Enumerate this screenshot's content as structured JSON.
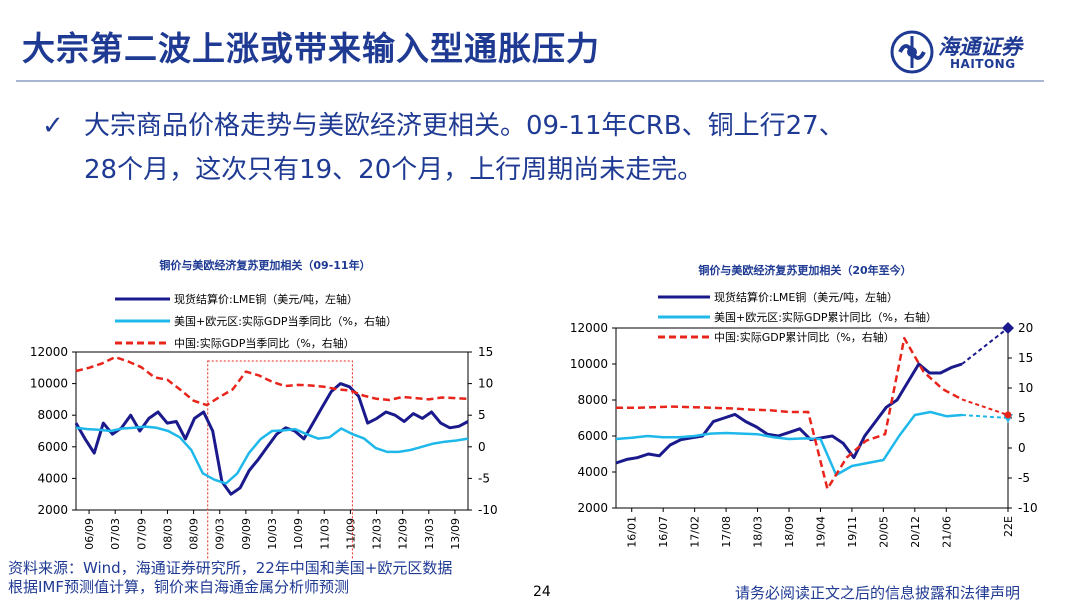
{
  "slide": {
    "title": "大宗第二波上涨或带来输入型通胀压力",
    "bullet_line1": "大宗商品价格走势与美欧经济更相关。09-11年CRB、铜上行27、",
    "bullet_line2": "28个月，这次只有19、20个月，上行周期尚未走完。",
    "page_number": "24",
    "source_line1": "资料来源：Wind，海通证券研究所，22年中国和美国+欧元区数据",
    "source_line2": "根据IMF预测值计算，铜价来自海通金属分析师预测",
    "disclaimer": "请务必阅读正文之后的信息披露和法律声明",
    "title_color": "#1f3a93"
  },
  "logo": {
    "name_cn": "海通证券",
    "name_en": "HAITONG",
    "icon": "haitong-logo-icon"
  },
  "chart_data": [
    {
      "type": "line",
      "title": "铜价与美欧经济复苏更加相关（09-11年）",
      "x_ticks": [
        "06/09",
        "07/03",
        "07/09",
        "08/03",
        "08/09",
        "09/03",
        "09/09",
        "10/03",
        "10/09",
        "11/03",
        "11/09",
        "12/03",
        "12/09",
        "13/03",
        "13/09"
      ],
      "y_left": {
        "range": [
          2000,
          12000
        ],
        "ticks": [
          "2000",
          "4000",
          "6000",
          "8000",
          "10000",
          "12000"
        ]
      },
      "y_right": {
        "range": [
          -10,
          15
        ],
        "ticks": [
          "-10",
          "-5",
          "0",
          "5",
          "10",
          "15"
        ]
      },
      "highlight": {
        "from": "09/03",
        "to": "11/09"
      },
      "series": [
        {
          "name": "现货结算价:LME铜（美元/吨，左轴）",
          "axis": "left",
          "color": "#1a1a8c",
          "style": "solid",
          "values": [
            7500,
            6500,
            5600,
            7500,
            6800,
            7200,
            8000,
            7000,
            7800,
            8200,
            7500,
            7600,
            6500,
            7800,
            8200,
            7000,
            3800,
            3000,
            3400,
            4500,
            5200,
            6000,
            6800,
            7200,
            7000,
            6500,
            7500,
            8500,
            9500,
            10000,
            9800,
            9200,
            7500,
            7800,
            8200,
            8000,
            7600,
            8100,
            7800,
            8200,
            7500,
            7200,
            7300,
            7600
          ]
        },
        {
          "name": "美国+欧元区:实际GDP当季同比（%，右轴）",
          "axis": "right",
          "color": "#1fb8ea",
          "style": "solid",
          "values": [
            3.0,
            2.8,
            2.7,
            2.5,
            2.9,
            3.0,
            3.2,
            3.0,
            2.5,
            1.5,
            -0.5,
            -4.2,
            -5.2,
            -5.8,
            -4.2,
            -1.0,
            1.2,
            2.5,
            2.6,
            2.8,
            2.0,
            1.3,
            1.5,
            2.9,
            2.0,
            1.3,
            -0.2,
            -0.8,
            -0.8,
            -0.5,
            0.0,
            0.5,
            0.8,
            1.0,
            1.3
          ]
        },
        {
          "name": "中国:实际GDP当季同比（%，右轴）",
          "axis": "right",
          "color": "#e8241b",
          "style": "dashed",
          "values": [
            12.0,
            12.5,
            13.2,
            14.2,
            13.5,
            12.6,
            11.0,
            10.6,
            9.0,
            7.3,
            6.6,
            7.9,
            9.1,
            11.9,
            11.3,
            10.3,
            9.6,
            9.8,
            9.7,
            9.5,
            9.1,
            8.9,
            8.1,
            7.6,
            7.4,
            7.9,
            7.7,
            7.5,
            7.8,
            7.7,
            7.6
          ]
        }
      ]
    },
    {
      "type": "line",
      "title": "铜价与美欧经济复苏更加相关（20年至今）",
      "x_ticks": [
        "16/01",
        "16/07",
        "17/02",
        "17/08",
        "18/03",
        "18/09",
        "19/04",
        "19/11",
        "20/05",
        "20/12",
        "21/06",
        "22E"
      ],
      "y_left": {
        "range": [
          2000,
          12000
        ],
        "ticks": [
          "2000",
          "4000",
          "6000",
          "8000",
          "10000",
          "12000"
        ]
      },
      "y_right": {
        "range": [
          -10,
          20
        ],
        "ticks": [
          "-10",
          "-5",
          "0",
          "5",
          "10",
          "15",
          "20"
        ]
      },
      "series": [
        {
          "name": "现货结算价:LME铜（美元/吨，左轴）",
          "axis": "left",
          "color": "#1a1a8c",
          "style": "solid",
          "values": [
            4500,
            4700,
            4800,
            5000,
            4900,
            5500,
            5800,
            5900,
            6000,
            6800,
            7000,
            7200,
            6800,
            6500,
            6100,
            6000,
            6200,
            6400,
            5800,
            5900,
            6000,
            5600,
            4800,
            6000,
            6800,
            7600,
            8000,
            9000,
            10000,
            9500,
            9500,
            9800,
            10000
          ],
          "forecast": 12000
        },
        {
          "name": "美国+欧元区:实际GDP累计同比（%，右轴）",
          "axis": "right",
          "color": "#1fb8ea",
          "style": "solid",
          "values": [
            1.5,
            1.7,
            2.0,
            1.8,
            1.8,
            2.0,
            2.4,
            2.5,
            2.4,
            2.3,
            1.8,
            1.5,
            1.6,
            1.5,
            -4.5,
            -3.0,
            -2.5,
            -2.0,
            2.0,
            5.5,
            6.0,
            5.3,
            5.5
          ],
          "forecast": 5.0
        },
        {
          "name": "中国:实际GDP累计同比（%，右轴）",
          "axis": "right",
          "color": "#e8241b",
          "style": "dashed",
          "values": [
            6.7,
            6.7,
            6.8,
            6.9,
            6.8,
            6.7,
            6.6,
            6.4,
            6.3,
            6.0,
            6.0,
            -6.8,
            -1.6,
            1.2,
            2.3,
            18.3,
            12.7,
            9.8,
            8.1
          ],
          "forecast": 5.5
        }
      ]
    }
  ]
}
